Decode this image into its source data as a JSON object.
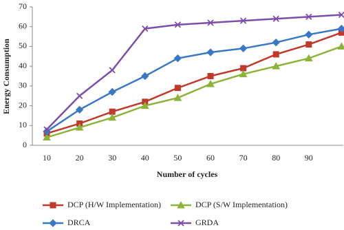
{
  "chart_data": {
    "type": "line",
    "x_label": "Number  of cycles",
    "y_label": "Energy  Consumption",
    "categories": [
      "10",
      "20",
      "30",
      "40",
      "50",
      "60",
      "70",
      "80",
      "90",
      null
    ],
    "ylim": [
      0,
      70
    ],
    "yticks": [
      0,
      10,
      20,
      30,
      40,
      50,
      60,
      70
    ],
    "grid": false,
    "legend": "bottom",
    "series": [
      {
        "name": "DCP (H/W Implementation)",
        "color": "#c0392b",
        "marker": "square",
        "values": [
          6,
          11,
          17,
          22,
          29,
          35,
          39,
          46,
          51,
          57
        ]
      },
      {
        "name": "DCP (S/W Implementation)",
        "color": "#8db33a",
        "marker": "triangle",
        "values": [
          4,
          9,
          14,
          20,
          24,
          31,
          36,
          40,
          44,
          50
        ]
      },
      {
        "name": "DRCA",
        "color": "#3a78c3",
        "marker": "diamond",
        "values": [
          7,
          18,
          27,
          35,
          44,
          47,
          49,
          52,
          56,
          59
        ]
      },
      {
        "name": "GRDA",
        "color": "#7b4fa8",
        "marker": "x",
        "values": [
          8,
          25,
          38,
          59,
          61,
          62,
          63,
          64,
          65,
          66
        ]
      }
    ]
  }
}
